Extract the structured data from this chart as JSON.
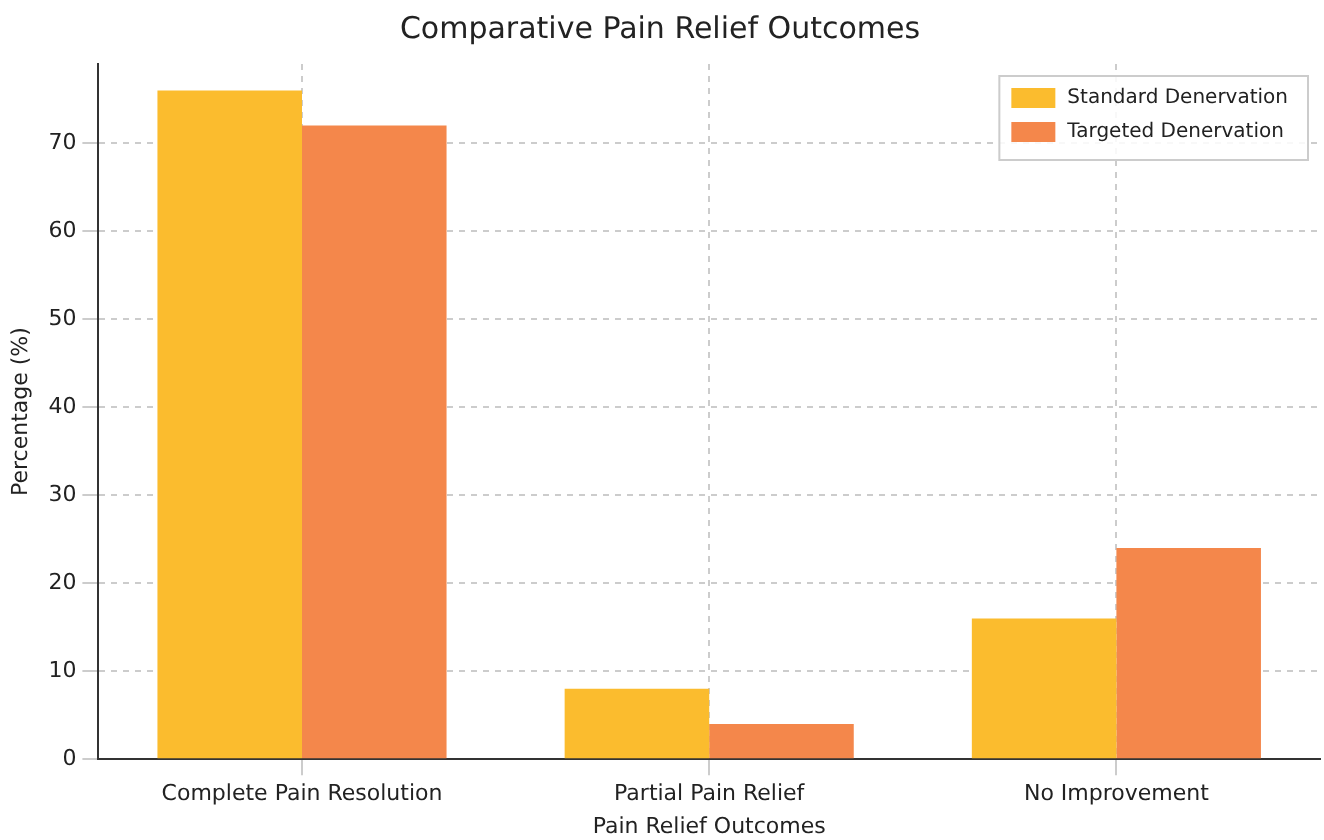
{
  "chart_data": {
    "type": "bar",
    "title": "Comparative Pain Relief Outcomes",
    "xlabel": "Pain Relief Outcomes",
    "ylabel": "Percentage (%)",
    "categories": [
      "Complete Pain Resolution",
      "Partial Pain Relief",
      "No Improvement"
    ],
    "series": [
      {
        "name": "Standard Denervation",
        "color": "#fbbc2e",
        "values": [
          76,
          8,
          16
        ]
      },
      {
        "name": "Targeted Denervation",
        "color": "#f4874b",
        "values": [
          72,
          4,
          24
        ]
      }
    ],
    "ylim": [
      0,
      79
    ],
    "yticks": [
      0,
      10,
      20,
      30,
      40,
      50,
      60,
      70
    ],
    "grid": true,
    "legend": "top right"
  }
}
